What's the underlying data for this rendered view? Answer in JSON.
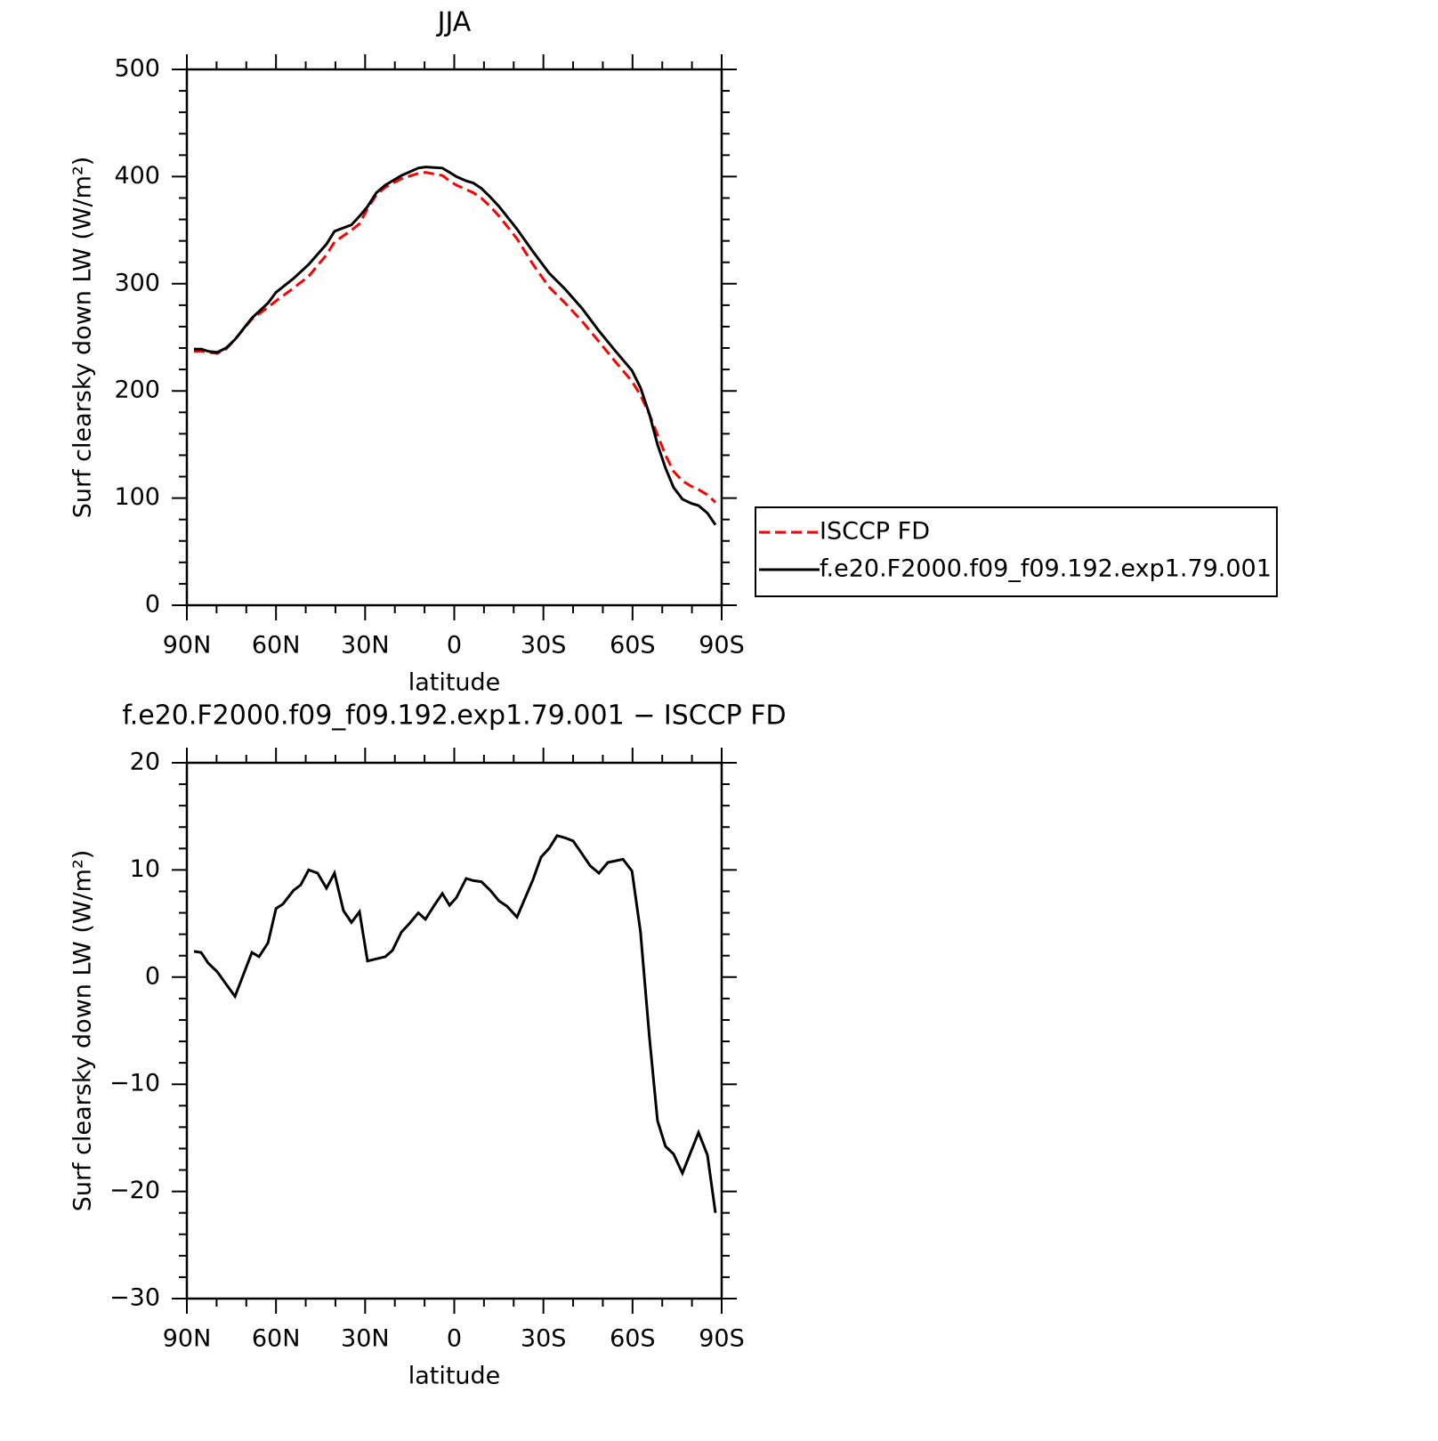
{
  "chart_data": [
    {
      "type": "line",
      "title": "JJA",
      "xlabel": "latitude",
      "ylabel": "Surf clearsky down LW (W/m²)",
      "xlim": [
        90,
        -90
      ],
      "ylim": [
        0,
        500
      ],
      "xticks": [
        {
          "value": 90,
          "label": "90N"
        },
        {
          "value": 60,
          "label": "60N"
        },
        {
          "value": 30,
          "label": "30N"
        },
        0,
        {
          "value": -30,
          "label": "30S"
        },
        {
          "value": -60,
          "label": "60S"
        },
        {
          "value": -90,
          "label": "90S"
        }
      ],
      "yticks": [
        0,
        100,
        200,
        300,
        400,
        500
      ],
      "legend": "outside-right",
      "x": [
        87.6,
        85.2,
        82.8,
        79.8,
        76.8,
        73.8,
        68.1,
        62.7,
        60.0,
        54.1,
        49.0,
        43.0,
        40.3,
        34.6,
        31.9,
        29.2,
        26.2,
        23.2,
        17.8,
        12.1,
        9.7,
        4.0,
        1.6,
        -0.7,
        -4.0,
        -6.4,
        -9.1,
        -12.1,
        -15.1,
        -21.1,
        -26.5,
        -31.9,
        -37.3,
        -43.0,
        -48.7,
        -54.0,
        -59.8,
        -62.7,
        -65.7,
        -68.4,
        -71.1,
        -73.8,
        -76.8,
        -79.8,
        -82.2,
        -85.2,
        -87.9
      ],
      "series": [
        {
          "name": "ISCCP FD",
          "color": "#ff0000",
          "line_style": "dashed",
          "values": [
            237,
            237,
            236,
            235,
            239,
            248,
            267,
            278,
            284,
            296,
            307,
            327,
            339,
            350,
            356,
            370,
            383,
            390,
            398,
            403,
            404,
            401,
            396,
            392,
            388,
            385,
            380,
            372,
            363,
            342,
            318,
            297,
            282,
            265,
            246,
            228,
            209,
            196,
            178,
            159,
            140,
            125,
            116,
            111,
            108,
            103,
            96
          ]
        },
        {
          "name": "f.e20.F2000.f09_f09.192.exp1.79.001",
          "color": "#000000",
          "line_style": "solid",
          "values": [
            239,
            239,
            237,
            236,
            240,
            248,
            268,
            282,
            292,
            305,
            318,
            337,
            349,
            355,
            363,
            372,
            385,
            392,
            401,
            408,
            409,
            408,
            404,
            400,
            396,
            394,
            389,
            381,
            372,
            351,
            330,
            310,
            295,
            277,
            256,
            238,
            219,
            203,
            178,
            150,
            128,
            110,
            99,
            95,
            93,
            86,
            75
          ]
        }
      ]
    },
    {
      "type": "line",
      "title": "f.e20.F2000.f09_f09.192.exp1.79.001 − ISCCP FD",
      "xlabel": "latitude",
      "ylabel": "Surf clearsky down LW (W/m²)",
      "xlim": [
        90,
        -90
      ],
      "ylim": [
        -30,
        20
      ],
      "xticks": [
        {
          "value": 90,
          "label": "90N"
        },
        {
          "value": 60,
          "label": "60N"
        },
        {
          "value": 30,
          "label": "30N"
        },
        0,
        {
          "value": -30,
          "label": "30S"
        },
        {
          "value": -60,
          "label": "60S"
        },
        {
          "value": -90,
          "label": "90S"
        }
      ],
      "yticks": [
        {
          "value": -30,
          "label": "−30"
        },
        {
          "value": -20,
          "label": "−20"
        },
        {
          "value": -10,
          "label": "−10"
        },
        0,
        10,
        20
      ],
      "x": [
        87.6,
        85.2,
        82.8,
        79.8,
        73.8,
        68.1,
        65.7,
        62.7,
        60.0,
        57.7,
        54.1,
        51.7,
        49.0,
        46.0,
        43.0,
        40.3,
        37.3,
        34.6,
        31.9,
        29.2,
        26.2,
        23.2,
        20.8,
        17.8,
        15.1,
        12.1,
        9.7,
        6.7,
        4.0,
        1.6,
        -0.7,
        -4.0,
        -6.4,
        -9.1,
        -12.1,
        -15.1,
        -17.8,
        -21.1,
        -26.5,
        -29.2,
        -31.9,
        -34.6,
        -37.3,
        -40.0,
        -43.0,
        -45.7,
        -48.7,
        -51.7,
        -56.8,
        -59.8,
        -62.7,
        -65.7,
        -68.4,
        -71.1,
        -73.8,
        -76.8,
        -82.2,
        -85.2,
        -87.9
      ],
      "series": [
        {
          "color": "#000000",
          "line_style": "solid",
          "values": [
            2.4,
            2.3,
            1.3,
            0.5,
            -1.8,
            2.3,
            1.9,
            3.2,
            6.4,
            6.8,
            8.1,
            8.6,
            10.0,
            9.7,
            8.3,
            9.7,
            6.2,
            5.1,
            6.1,
            1.5,
            1.7,
            1.9,
            2.5,
            4.2,
            5.0,
            6.0,
            5.4,
            6.7,
            7.8,
            6.7,
            7.4,
            9.2,
            9.0,
            8.9,
            8.1,
            7.1,
            6.6,
            5.6,
            9.1,
            11.2,
            12.0,
            13.2,
            13.0,
            12.7,
            11.5,
            10.4,
            9.7,
            10.7,
            11.0,
            9.9,
            4.2,
            -5.7,
            -13.4,
            -15.8,
            -16.5,
            -18.3,
            -14.5,
            -16.6,
            -22.0
          ]
        }
      ]
    }
  ]
}
